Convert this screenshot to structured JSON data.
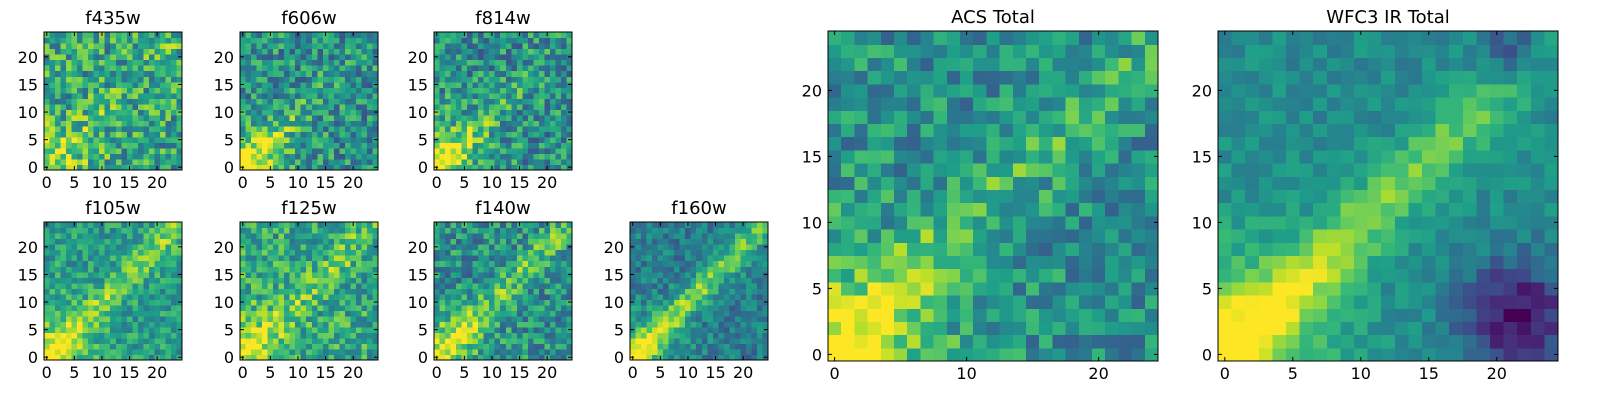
{
  "chart_data": [
    {
      "type": "heatmap",
      "title": "f435w",
      "xticks": [
        "0",
        "5",
        "10",
        "15",
        "20"
      ],
      "yticks": [
        "0",
        "5",
        "10",
        "15",
        "20"
      ],
      "x_range": [
        0,
        24
      ],
      "y_range": [
        0,
        24
      ],
      "grid_size": [
        25,
        25
      ],
      "colormap": "viridis",
      "gradient": "weak diagonal lower-left bright",
      "seed": 11
    },
    {
      "type": "heatmap",
      "title": "f606w",
      "xticks": [
        "0",
        "5",
        "10",
        "15",
        "20"
      ],
      "yticks": [
        "0",
        "5",
        "10",
        "15",
        "20"
      ],
      "x_range": [
        0,
        24
      ],
      "y_range": [
        0,
        24
      ],
      "grid_size": [
        25,
        25
      ],
      "colormap": "viridis",
      "gradient": "diagonal lower-left bright",
      "seed": 23
    },
    {
      "type": "heatmap",
      "title": "f814w",
      "xticks": [
        "0",
        "5",
        "10",
        "15",
        "20"
      ],
      "yticks": [
        "0",
        "5",
        "10",
        "15",
        "20"
      ],
      "x_range": [
        0,
        24
      ],
      "y_range": [
        0,
        24
      ],
      "grid_size": [
        25,
        25
      ],
      "colormap": "viridis",
      "gradient": "diagonal lower-left bright",
      "seed": 37
    },
    {
      "type": "heatmap",
      "title": "f105w",
      "xticks": [
        "0",
        "5",
        "10",
        "15",
        "20"
      ],
      "yticks": [
        "0",
        "5",
        "10",
        "15",
        "20"
      ],
      "x_range": [
        0,
        24
      ],
      "y_range": [
        0,
        24
      ],
      "grid_size": [
        25,
        25
      ],
      "colormap": "viridis",
      "gradient": "diagonal lower-left bright",
      "seed": 41
    },
    {
      "type": "heatmap",
      "title": "f125w",
      "xticks": [
        "0",
        "5",
        "10",
        "15",
        "20"
      ],
      "yticks": [
        "0",
        "5",
        "10",
        "15",
        "20"
      ],
      "x_range": [
        0,
        24
      ],
      "y_range": [
        0,
        24
      ],
      "grid_size": [
        25,
        25
      ],
      "colormap": "viridis",
      "gradient": "diagonal lower-left bright",
      "seed": 53
    },
    {
      "type": "heatmap",
      "title": "f140w",
      "xticks": [
        "0",
        "5",
        "10",
        "15",
        "20"
      ],
      "yticks": [
        "0",
        "5",
        "10",
        "15",
        "20"
      ],
      "x_range": [
        0,
        24
      ],
      "y_range": [
        0,
        24
      ],
      "grid_size": [
        25,
        25
      ],
      "colormap": "viridis",
      "gradient": "diagonal lower-left bright",
      "seed": 67
    },
    {
      "type": "heatmap",
      "title": "f160w",
      "xticks": [
        "0",
        "5",
        "10",
        "15",
        "20"
      ],
      "yticks": [
        "0",
        "5",
        "10",
        "15",
        "20"
      ],
      "x_range": [
        0,
        24
      ],
      "y_range": [
        0,
        24
      ],
      "grid_size": [
        25,
        25
      ],
      "colormap": "viridis",
      "gradient": "strong diagonal band",
      "seed": 79
    },
    {
      "type": "heatmap",
      "title": "ACS Total",
      "xticks": [
        "0",
        "10",
        "20"
      ],
      "yticks": [
        "0",
        "5",
        "10",
        "15",
        "20"
      ],
      "x_range": [
        0,
        24
      ],
      "y_range": [
        0,
        24
      ],
      "grid_size": [
        25,
        25
      ],
      "colormap": "viridis",
      "gradient": "diagonal lower-left bright",
      "seed": 83
    },
    {
      "type": "heatmap",
      "title": "WFC3 IR Total",
      "xticks": [
        "0",
        "5",
        "10",
        "15",
        "20"
      ],
      "yticks": [
        "0",
        "5",
        "10",
        "15",
        "20"
      ],
      "x_range": [
        0,
        24
      ],
      "y_range": [
        0,
        24
      ],
      "grid_size": [
        25,
        25
      ],
      "colormap": "viridis",
      "gradient": "smooth diagonal band, dark lower-right",
      "seed": 97
    }
  ]
}
